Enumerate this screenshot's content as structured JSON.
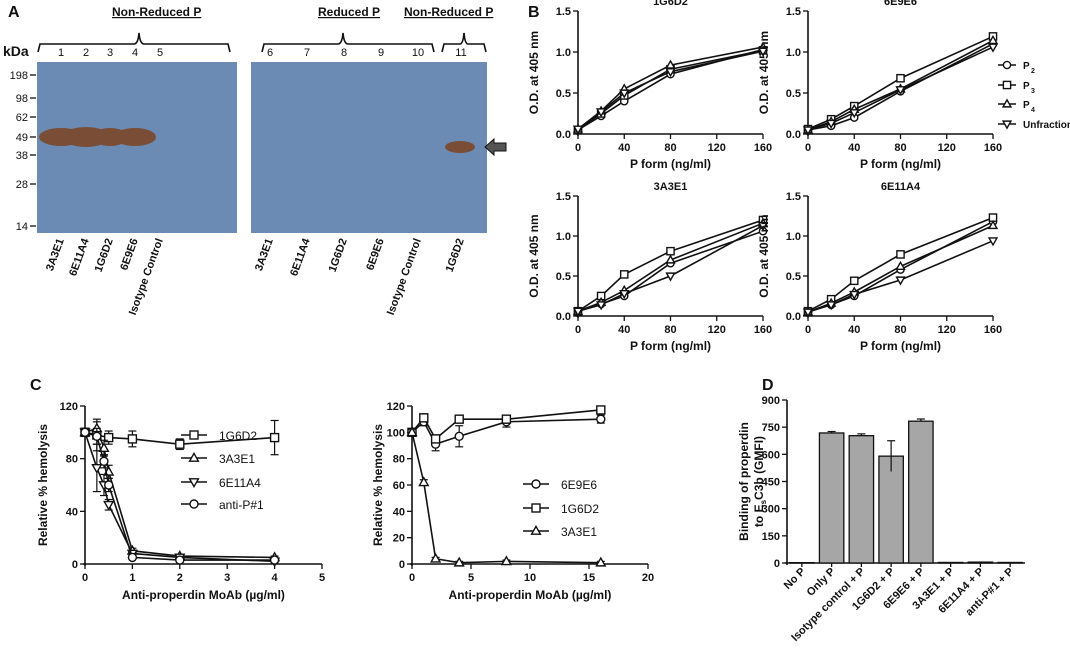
{
  "panel_letters": {
    "a": "A",
    "b": "B",
    "c": "C",
    "d": "D"
  },
  "blot": {
    "header_left": "Non-Reduced P",
    "header_mid": "Reduced P",
    "header_right": "Non-Reduced P",
    "kda_label": "kDa",
    "mw_markers": [
      "198",
      "98",
      "62",
      "49",
      "38",
      "28",
      "14"
    ],
    "lanes_left": [
      "1",
      "2",
      "3",
      "4",
      "5"
    ],
    "lanes_right": [
      "6",
      "7",
      "8",
      "9",
      "10",
      "11"
    ],
    "labels_left": [
      "3A3E1",
      "6E11A4",
      "1G6D2",
      "6E9E6",
      "Isotype Control"
    ],
    "labels_right": [
      "3A3E1",
      "6E11A4",
      "1G6D2",
      "6E9E6",
      "Isotype Control",
      "1G6D2"
    ],
    "band_lanes": [
      "1",
      "2",
      "3",
      "4",
      "11"
    ]
  },
  "colors": {
    "blot_bg": "#6c8bb4",
    "band": "#7a4d37",
    "bar_fill": "#a6a6a6"
  },
  "chart_data": [
    {
      "id": "B1",
      "type": "line",
      "title": "1G6D2",
      "xlabel": "P form (ng/ml)",
      "ylabel": "O.D. at 405 nm",
      "xlim": [
        0,
        160
      ],
      "ylim": [
        0,
        1.5
      ],
      "xticks": [
        "0",
        "40",
        "80",
        "120",
        "160"
      ],
      "yticks": [
        "0.0",
        "0.5",
        "1.0",
        "1.5"
      ],
      "x": [
        0,
        20,
        40,
        80,
        160
      ],
      "series": [
        {
          "name": "P2",
          "marker": "circle",
          "values": [
            0.05,
            0.22,
            0.4,
            0.73,
            1.03
          ]
        },
        {
          "name": "P3",
          "marker": "square",
          "values": [
            0.05,
            0.25,
            0.47,
            0.79,
            1.02
          ]
        },
        {
          "name": "P4",
          "marker": "triangle-up",
          "values": [
            0.06,
            0.28,
            0.55,
            0.84,
            1.06
          ]
        },
        {
          "name": "Unfractionated P",
          "marker": "triangle-down",
          "values": [
            0.06,
            0.27,
            0.5,
            0.76,
            1.01
          ]
        }
      ],
      "legend": {
        "entries": [
          "P",
          "P",
          "P",
          "Unfractionated P"
        ],
        "subscripts": [
          "2",
          "3",
          "4",
          ""
        ]
      }
    },
    {
      "id": "B2",
      "type": "line",
      "title": "6E9E6",
      "xlabel": "P form (ng/ml)",
      "ylabel": "O.D. at 405 nm",
      "xlim": [
        0,
        160
      ],
      "ylim": [
        0,
        1.5
      ],
      "xticks": [
        "0",
        "40",
        "80",
        "120",
        "160"
      ],
      "yticks": [
        "0.0",
        "0.5",
        "1.0",
        "1.5"
      ],
      "x": [
        0,
        20,
        40,
        80,
        160
      ],
      "series": [
        {
          "name": "P2",
          "marker": "circle",
          "values": [
            0.05,
            0.1,
            0.2,
            0.52,
            1.1
          ]
        },
        {
          "name": "P3",
          "marker": "square",
          "values": [
            0.06,
            0.18,
            0.34,
            0.68,
            1.19
          ]
        },
        {
          "name": "P4",
          "marker": "triangle-up",
          "values": [
            0.05,
            0.15,
            0.3,
            0.55,
            1.14
          ]
        },
        {
          "name": "Unfractionated P",
          "marker": "triangle-down",
          "values": [
            0.05,
            0.13,
            0.26,
            0.54,
            1.06
          ]
        }
      ]
    },
    {
      "id": "B3",
      "type": "line",
      "title": "3A3E1",
      "xlabel": "P form (ng/ml)",
      "ylabel": "O.D. at 405 nm",
      "xlim": [
        0,
        160
      ],
      "ylim": [
        0,
        1.5
      ],
      "xticks": [
        "0",
        "40",
        "80",
        "120",
        "160"
      ],
      "yticks": [
        "0.0",
        "0.5",
        "1.0",
        "1.5"
      ],
      "x": [
        0,
        20,
        40,
        80,
        160
      ],
      "series": [
        {
          "name": "P2",
          "marker": "circle",
          "values": [
            0.06,
            0.15,
            0.25,
            0.66,
            1.06
          ]
        },
        {
          "name": "P3",
          "marker": "square",
          "values": [
            0.06,
            0.25,
            0.52,
            0.81,
            1.2
          ]
        },
        {
          "name": "P4",
          "marker": "triangle-up",
          "values": [
            0.06,
            0.17,
            0.32,
            0.7,
            1.16
          ]
        },
        {
          "name": "Unfractionated P",
          "marker": "triangle-down",
          "values": [
            0.06,
            0.14,
            0.28,
            0.5,
            1.13
          ]
        }
      ]
    },
    {
      "id": "B4",
      "type": "line",
      "title": "6E11A4",
      "xlabel": "P form (ng/ml)",
      "ylabel": "O.D. at 405 nm",
      "xlim": [
        0,
        160
      ],
      "ylim": [
        0,
        1.5
      ],
      "xticks": [
        "0",
        "40",
        "80",
        "120",
        "160"
      ],
      "yticks": [
        "0.0",
        "0.5",
        "1.0",
        "1.5"
      ],
      "x": [
        0,
        20,
        40,
        80,
        160
      ],
      "series": [
        {
          "name": "P2",
          "marker": "circle",
          "values": [
            0.05,
            0.14,
            0.25,
            0.58,
            1.18
          ]
        },
        {
          "name": "P3",
          "marker": "square",
          "values": [
            0.06,
            0.21,
            0.44,
            0.77,
            1.23
          ]
        },
        {
          "name": "P4",
          "marker": "triangle-up",
          "values": [
            0.05,
            0.16,
            0.3,
            0.62,
            1.13
          ]
        },
        {
          "name": "Unfractionated P",
          "marker": "triangle-down",
          "values": [
            0.05,
            0.14,
            0.27,
            0.45,
            0.94
          ]
        }
      ]
    },
    {
      "id": "C1",
      "type": "line",
      "title": "",
      "xlabel": "Anti-properdin MoAb (µg/ml)",
      "ylabel": "Relative % hemolysis",
      "xlim": [
        0,
        5
      ],
      "ylim": [
        0,
        120
      ],
      "xticks": [
        "0",
        "1",
        "2",
        "3",
        "4",
        "5"
      ],
      "yticks": [
        "0",
        "40",
        "80",
        "120"
      ],
      "series": [
        {
          "name": "1G6D2",
          "marker": "square",
          "x": [
            0,
            0.25,
            0.5,
            1,
            2,
            4
          ],
          "values": [
            100,
            98,
            96,
            95,
            91,
            96
          ],
          "err": [
            3,
            12,
            5,
            6,
            4,
            13
          ]
        },
        {
          "name": "3A3E1",
          "marker": "triangle-up",
          "x": [
            0,
            0.25,
            0.4,
            0.5,
            1,
            2,
            4
          ],
          "values": [
            100,
            103,
            88,
            70,
            10,
            6,
            5
          ],
          "err": [
            3,
            5,
            6,
            5,
            2,
            1,
            1
          ]
        },
        {
          "name": "6E11A4",
          "marker": "triangle-down",
          "x": [
            0,
            0.25,
            0.4,
            0.5,
            1,
            2,
            4
          ],
          "values": [
            100,
            73,
            60,
            45,
            8,
            5,
            2
          ],
          "err": [
            3,
            18,
            8,
            4,
            2,
            1,
            1
          ]
        },
        {
          "name": "anti-P#1",
          "marker": "circle",
          "x": [
            0,
            0.25,
            0.4,
            0.5,
            1,
            2,
            4
          ],
          "values": [
            100,
            97,
            78,
            60,
            5,
            3,
            3
          ],
          "err": [
            3,
            6,
            5,
            5,
            1,
            1,
            1
          ]
        }
      ]
    },
    {
      "id": "C2",
      "type": "line",
      "title": "",
      "xlabel": "Anti-properdin MoAb (µg/ml)",
      "ylabel": "Relative % hemolysis",
      "xlim": [
        0,
        20
      ],
      "ylim": [
        0,
        120
      ],
      "xticks": [
        "0",
        "5",
        "10",
        "15",
        "20"
      ],
      "yticks": [
        "0",
        "20",
        "40",
        "60",
        "80",
        "100",
        "120"
      ],
      "series": [
        {
          "name": "6E9E6",
          "marker": "circle",
          "x": [
            0,
            1,
            2,
            4,
            8,
            16
          ],
          "values": [
            100,
            108,
            91,
            97,
            108,
            110
          ],
          "err": [
            2,
            3,
            5,
            8,
            4,
            3
          ]
        },
        {
          "name": "1G6D2",
          "marker": "square",
          "x": [
            0,
            1,
            2,
            4,
            8,
            16
          ],
          "values": [
            100,
            111,
            95,
            110,
            110,
            117
          ],
          "err": [
            2,
            3,
            3,
            2,
            3,
            2
          ]
        },
        {
          "name": "3A3E1",
          "marker": "triangle-up",
          "x": [
            0,
            1,
            2,
            4,
            8,
            16
          ],
          "values": [
            100,
            62,
            4,
            1,
            2,
            1
          ],
          "err": [
            2,
            2,
            1,
            1,
            1,
            1
          ]
        }
      ]
    },
    {
      "id": "D",
      "type": "bar",
      "title": "",
      "ylabel": "Binding of properdin to EsC3b (GMFI)",
      "ylabel_parts": {
        "pre": "Binding of properdin",
        "mid": "to E",
        "sub": "s",
        "post": "C3b (GMFI)"
      },
      "ylim": [
        0,
        900
      ],
      "yticks": [
        "0",
        "150",
        "300",
        "450",
        "600",
        "750",
        "900"
      ],
      "categories": [
        "No P",
        "Only P",
        "Isotype control + P",
        "1G6D2 + P",
        "6E9E6 + P",
        "3A3E1 + P",
        "6E11A4 + P",
        "anti-P#1 + P"
      ],
      "values": [
        2,
        718,
        703,
        590,
        783,
        3,
        5,
        3
      ],
      "err": [
        0,
        8,
        10,
        85,
        12,
        0,
        0,
        0
      ]
    }
  ]
}
